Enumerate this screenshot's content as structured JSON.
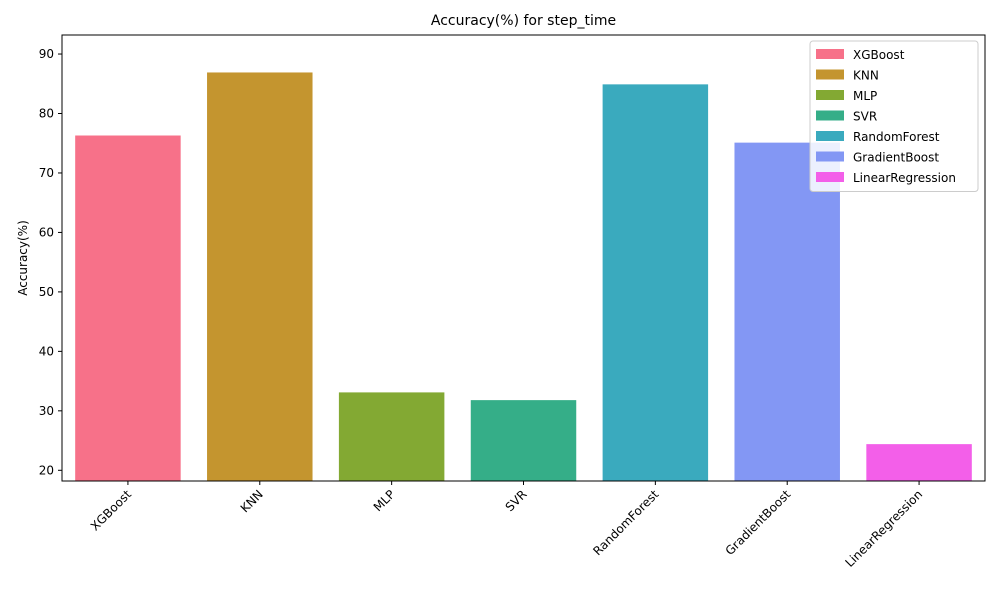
{
  "chart_data": {
    "type": "bar",
    "title": "Accuracy(%) for step_time",
    "xlabel": "",
    "ylabel": "Accuracy(%)",
    "categories": [
      "XGBoost",
      "KNN",
      "MLP",
      "SVR",
      "RandomForest",
      "GradientBoost",
      "LinearRegression"
    ],
    "values": [
      76.3,
      86.9,
      33.1,
      31.8,
      84.9,
      75.1,
      24.4
    ],
    "colors": [
      "#f77189",
      "#c4952f",
      "#83a933",
      "#35ae88",
      "#3aaabe",
      "#8397f4",
      "#f35fe9"
    ],
    "ylim": [
      18.2,
      93.2
    ],
    "yticks": [
      20,
      30,
      40,
      50,
      60,
      70,
      80,
      90
    ],
    "grid": false,
    "legend": {
      "position": "top-right",
      "entries": [
        "XGBoost",
        "KNN",
        "MLP",
        "SVR",
        "RandomForest",
        "GradientBoost",
        "LinearRegression"
      ]
    }
  }
}
